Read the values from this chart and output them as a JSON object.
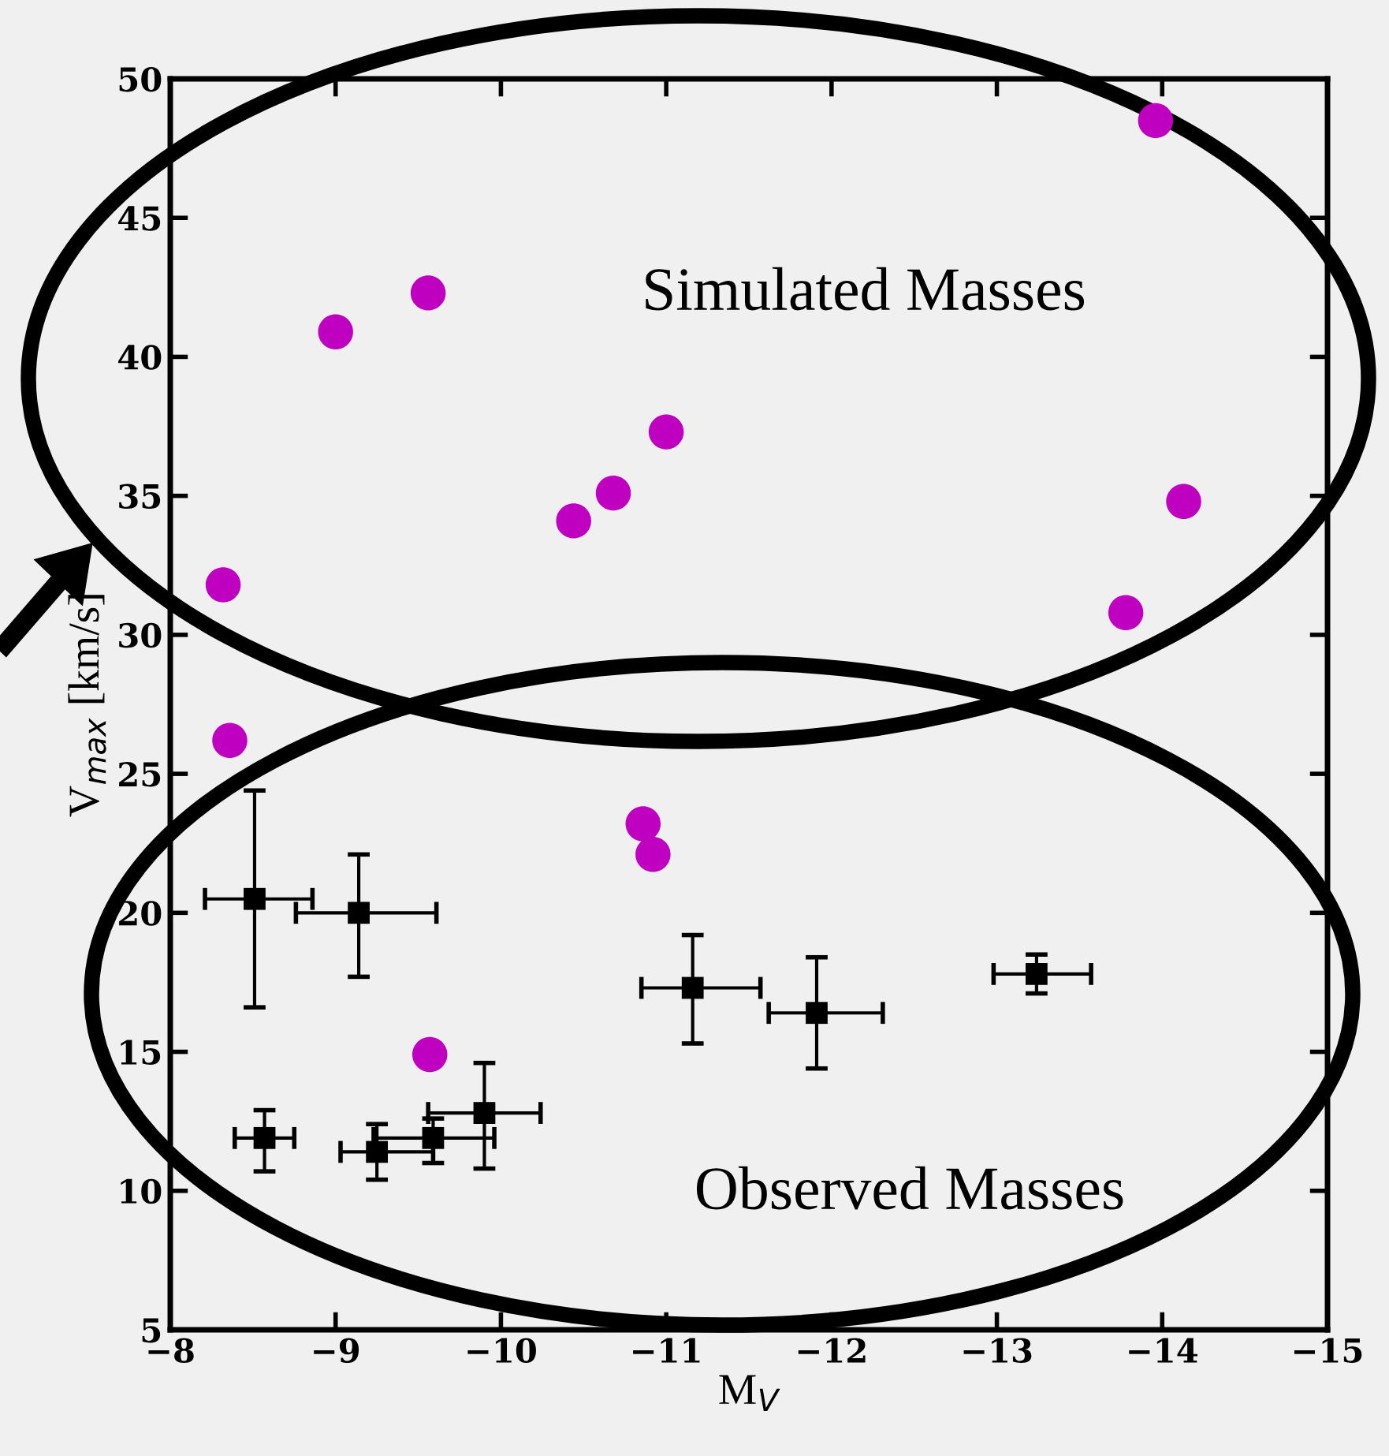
{
  "chart_data": {
    "type": "scatter",
    "xlabel": "M$_{V}$",
    "ylabel": "V$_{max}$ [km/s]",
    "xlim": [
      -8,
      -15
    ],
    "xticks": [
      {
        "value": -8,
        "label": "−8"
      },
      {
        "value": -9,
        "label": "−9"
      },
      {
        "value": -10,
        "label": "−10"
      },
      {
        "value": -11,
        "label": "−11"
      },
      {
        "value": -12,
        "label": "−12"
      },
      {
        "value": -13,
        "label": "−13"
      },
      {
        "value": -14,
        "label": "−14"
      },
      {
        "value": -15,
        "label": "−15"
      }
    ],
    "ylim": [
      5,
      50
    ],
    "yticks": [
      5,
      10,
      15,
      20,
      25,
      30,
      35,
      40,
      45,
      50
    ],
    "grid": false,
    "annotations": [
      "Simulated Masses",
      "Observed Masses"
    ],
    "series": [
      {
        "marker": "circle",
        "color": "#c000c0",
        "x": [
          -13.96,
          -9.0,
          -9.56,
          -10.44,
          -10.68,
          -11.0,
          -14.13,
          -8.32,
          -13.78,
          -8.36,
          -10.86,
          -10.92,
          -9.57
        ],
        "values": [
          48.5,
          40.9,
          42.3,
          34.1,
          35.1,
          37.3,
          34.8,
          31.8,
          30.8,
          26.2,
          23.2,
          22.1,
          14.9
        ]
      },
      {
        "marker": "square",
        "color": "#000000",
        "x": [
          -8.51,
          -9.14,
          -8.57,
          -9.25,
          -9.59,
          -9.9,
          -11.16,
          -11.91,
          -13.24
        ],
        "values": [
          20.5,
          20.0,
          11.9,
          11.4,
          11.9,
          12.8,
          17.3,
          16.4,
          17.8
        ],
        "errors": [
          [
            16.6,
            24.4
          ],
          [
            17.7,
            22.1
          ],
          [
            10.7,
            12.9
          ],
          [
            10.4,
            12.4
          ],
          [
            11.0,
            12.6
          ],
          [
            10.8,
            14.6
          ],
          [
            15.3,
            19.2
          ],
          [
            14.4,
            18.4
          ],
          [
            17.1,
            18.5
          ]
        ],
        "xerrors": [
          [
            -8.86,
            -8.21
          ],
          [
            -9.61,
            -8.76
          ],
          [
            -8.75,
            -8.39
          ],
          [
            -9.59,
            -9.03
          ],
          [
            -9.96,
            -9.23
          ],
          [
            -10.24,
            -9.56
          ],
          [
            -11.57,
            -10.85
          ],
          [
            -12.31,
            -11.62
          ],
          [
            -13.57,
            -12.98
          ]
        ]
      }
    ]
  }
}
